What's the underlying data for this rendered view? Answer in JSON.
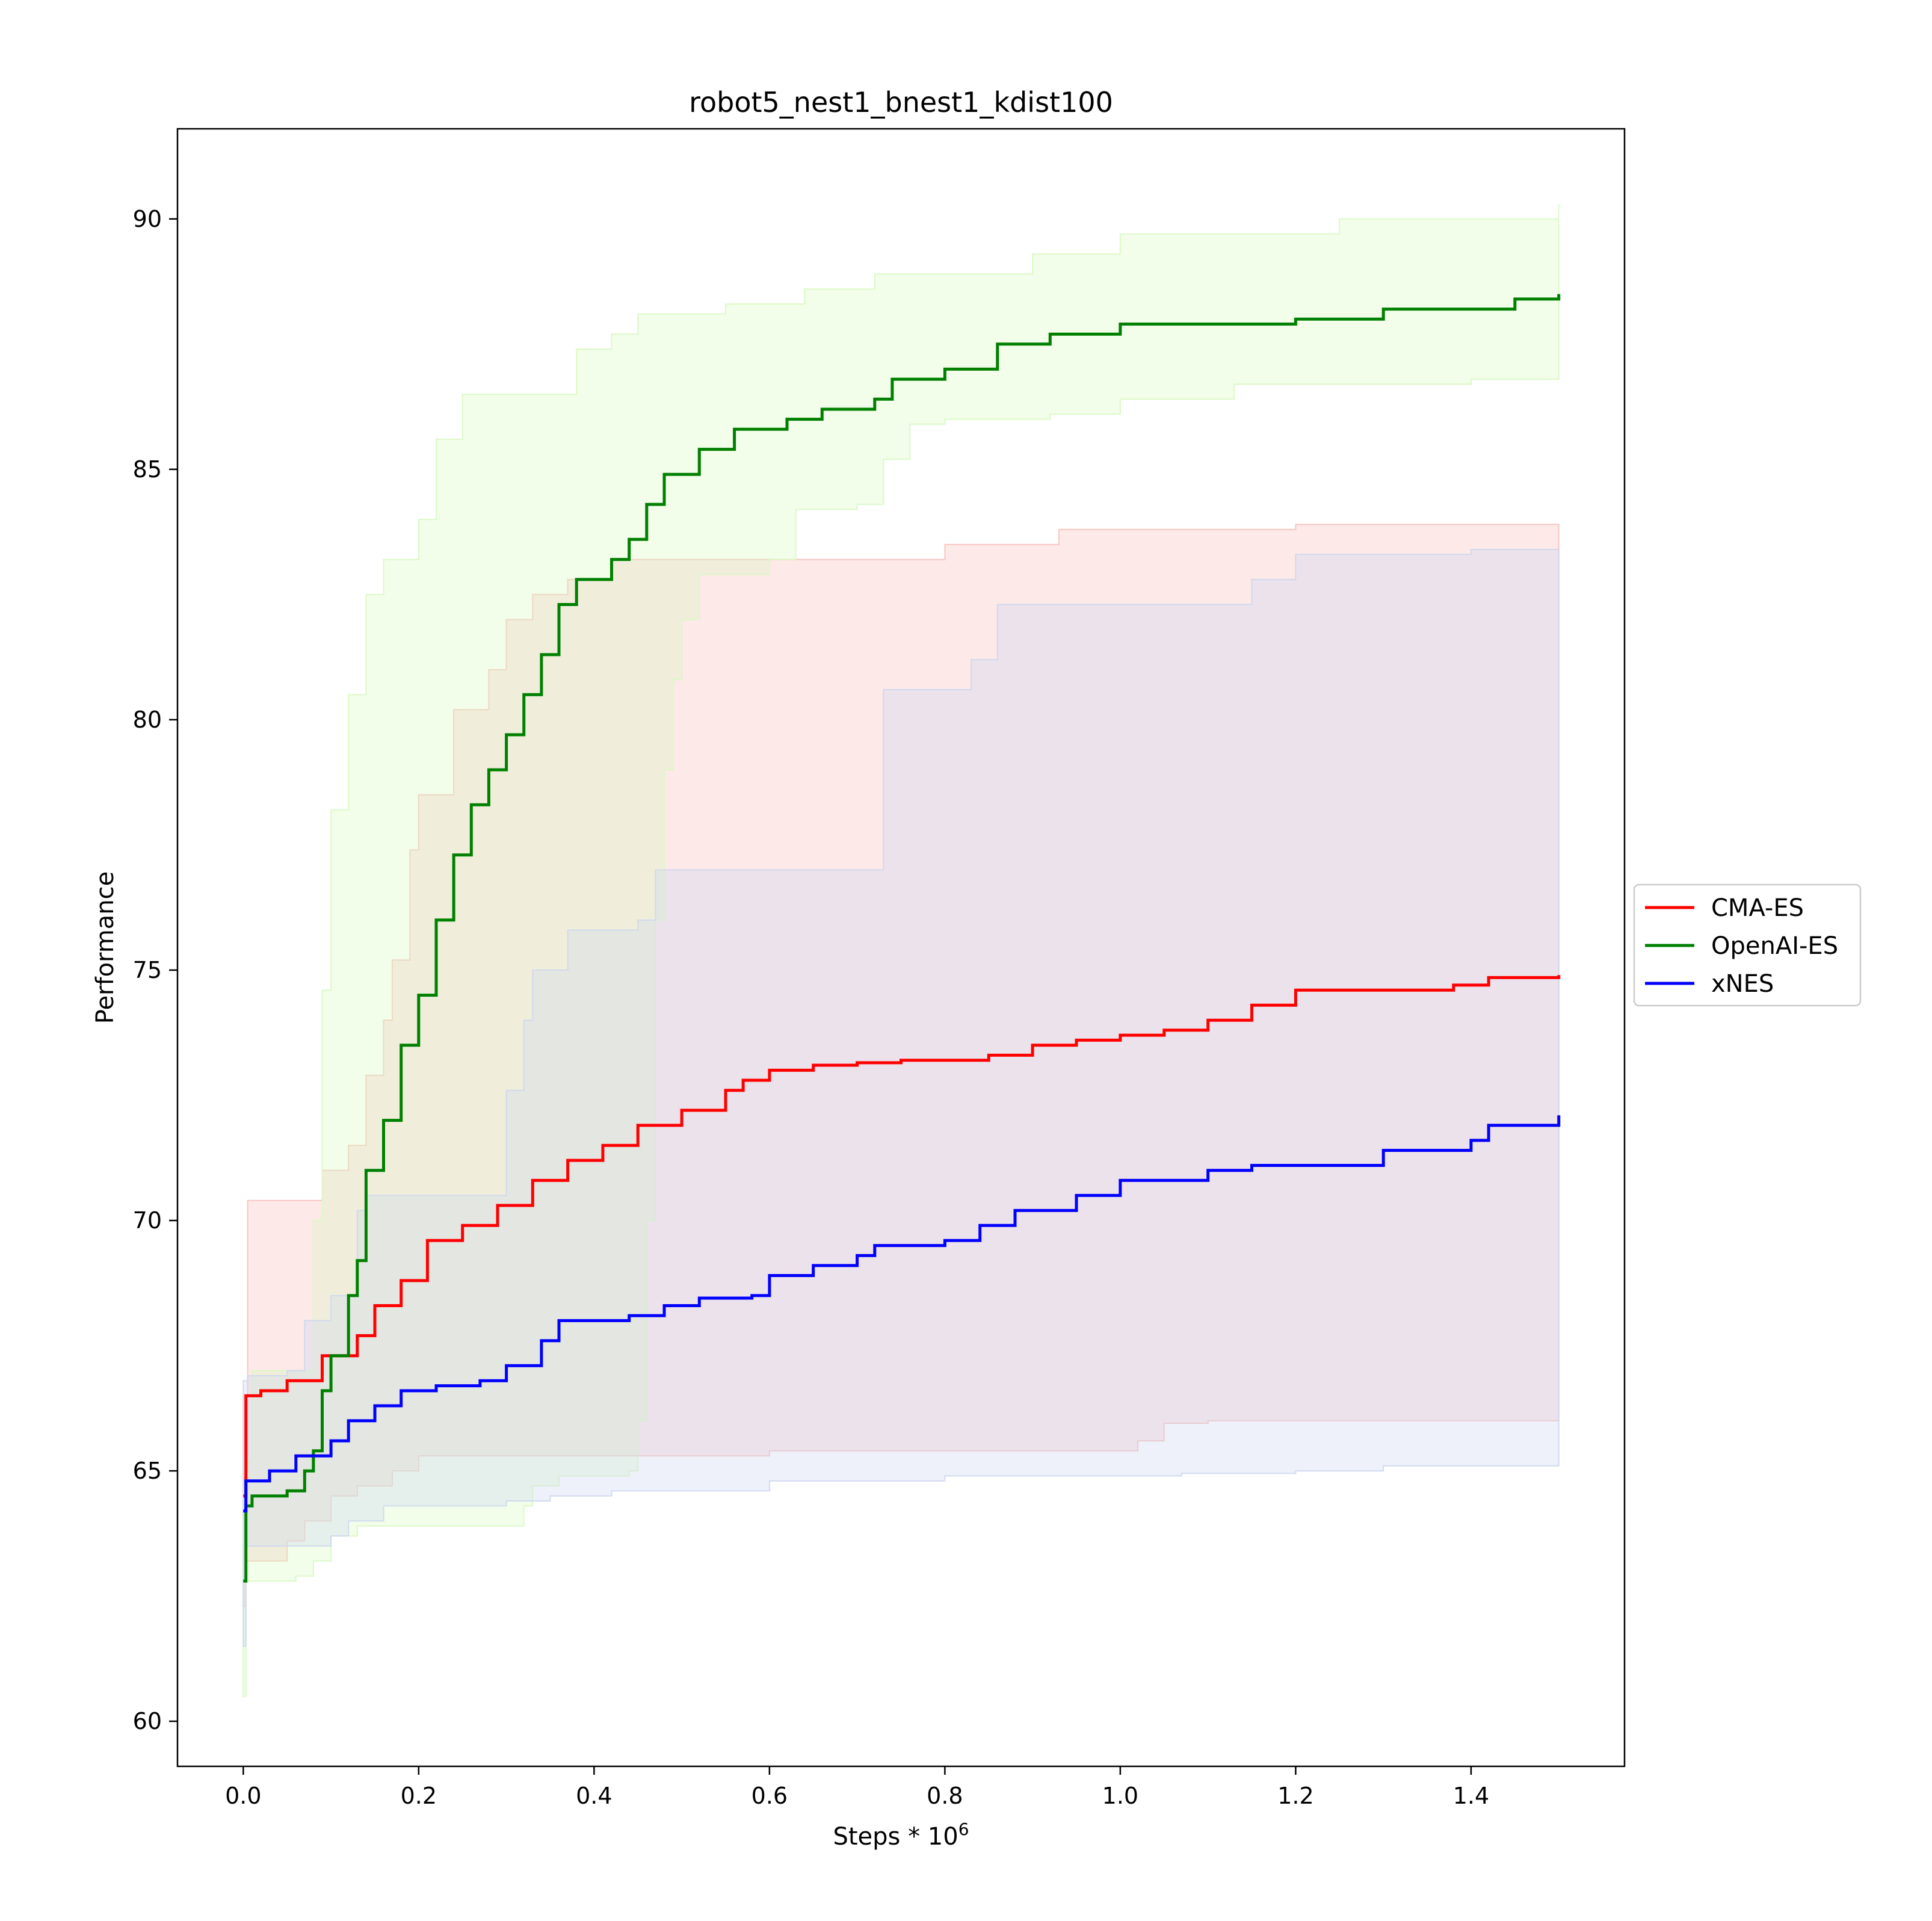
{
  "chart_data": {
    "type": "line",
    "title": "robot5_nest1_bnest1_kdist100",
    "xlabel": "Steps * 10",
    "xlabel_exponent": "6",
    "ylabel": "Performance",
    "xlim": [
      -0.075,
      1.575
    ],
    "ylim": [
      59.1,
      91.8
    ],
    "xticks": [
      0.0,
      0.2,
      0.4,
      0.6,
      0.8,
      1.0,
      1.2,
      1.4
    ],
    "xtick_labels": [
      "0.0",
      "0.2",
      "0.4",
      "0.6",
      "0.8",
      "1.0",
      "1.2",
      "1.4"
    ],
    "yticks": [
      60,
      65,
      70,
      75,
      80,
      85,
      90
    ],
    "ytick_labels": [
      "60",
      "65",
      "70",
      "75",
      "80",
      "85",
      "90"
    ],
    "grid": false,
    "legend_position": "right",
    "series": [
      {
        "name": "CMA-ES",
        "color": "#ff0000",
        "band_color": "#f6c1bd",
        "mean": [
          [
            0,
            64.5
          ],
          [
            0.003,
            66.5
          ],
          [
            0.02,
            66.6
          ],
          [
            0.05,
            66.8
          ],
          [
            0.09,
            67.3
          ],
          [
            0.13,
            67.7
          ],
          [
            0.15,
            68.3
          ],
          [
            0.18,
            68.8
          ],
          [
            0.21,
            69.6
          ],
          [
            0.25,
            69.9
          ],
          [
            0.29,
            70.3
          ],
          [
            0.33,
            70.8
          ],
          [
            0.37,
            71.2
          ],
          [
            0.41,
            71.5
          ],
          [
            0.45,
            71.9
          ],
          [
            0.5,
            72.2
          ],
          [
            0.55,
            72.6
          ],
          [
            0.57,
            72.8
          ],
          [
            0.6,
            73.0
          ],
          [
            0.65,
            73.1
          ],
          [
            0.7,
            73.15
          ],
          [
            0.75,
            73.2
          ],
          [
            0.85,
            73.3
          ],
          [
            0.9,
            73.5
          ],
          [
            0.95,
            73.6
          ],
          [
            1.0,
            73.7
          ],
          [
            1.05,
            73.8
          ],
          [
            1.1,
            74.0
          ],
          [
            1.15,
            74.3
          ],
          [
            1.2,
            74.6
          ],
          [
            1.3,
            74.6
          ],
          [
            1.38,
            74.7
          ],
          [
            1.42,
            74.85
          ],
          [
            1.5,
            74.9
          ]
        ],
        "upper": [
          [
            0,
            66.5
          ],
          [
            0.005,
            70.4
          ],
          [
            0.08,
            70.4
          ],
          [
            0.09,
            71.0
          ],
          [
            0.12,
            71.5
          ],
          [
            0.14,
            72.9
          ],
          [
            0.16,
            74.0
          ],
          [
            0.17,
            75.2
          ],
          [
            0.19,
            77.4
          ],
          [
            0.2,
            78.5
          ],
          [
            0.24,
            80.2
          ],
          [
            0.28,
            81.0
          ],
          [
            0.3,
            82.0
          ],
          [
            0.33,
            82.5
          ],
          [
            0.37,
            82.8
          ],
          [
            0.42,
            83.2
          ],
          [
            0.58,
            83.2
          ],
          [
            0.8,
            83.5
          ],
          [
            0.93,
            83.8
          ],
          [
            1.1,
            83.8
          ],
          [
            1.2,
            83.9
          ],
          [
            1.5,
            83.9
          ]
        ],
        "lower": [
          [
            0,
            62.3
          ],
          [
            0.003,
            63.2
          ],
          [
            0.05,
            63.6
          ],
          [
            0.07,
            64.0
          ],
          [
            0.1,
            64.5
          ],
          [
            0.13,
            64.7
          ],
          [
            0.17,
            65.0
          ],
          [
            0.2,
            65.3
          ],
          [
            0.45,
            65.3
          ],
          [
            0.6,
            65.4
          ],
          [
            1.0,
            65.4
          ],
          [
            1.02,
            65.6
          ],
          [
            1.05,
            65.95
          ],
          [
            1.1,
            66.0
          ],
          [
            1.5,
            66.1
          ]
        ]
      },
      {
        "name": "OpenAI-ES",
        "color": "#008000",
        "band_color": "#d9f8c2",
        "mean": [
          [
            0,
            62.8
          ],
          [
            0.003,
            64.3
          ],
          [
            0.01,
            64.5
          ],
          [
            0.05,
            64.6
          ],
          [
            0.07,
            65.0
          ],
          [
            0.08,
            65.4
          ],
          [
            0.09,
            66.6
          ],
          [
            0.1,
            67.3
          ],
          [
            0.12,
            68.5
          ],
          [
            0.13,
            69.2
          ],
          [
            0.14,
            71.0
          ],
          [
            0.16,
            72.0
          ],
          [
            0.18,
            73.5
          ],
          [
            0.2,
            74.5
          ],
          [
            0.22,
            76.0
          ],
          [
            0.24,
            77.3
          ],
          [
            0.26,
            78.3
          ],
          [
            0.28,
            79.0
          ],
          [
            0.3,
            79.7
          ],
          [
            0.32,
            80.5
          ],
          [
            0.34,
            81.3
          ],
          [
            0.36,
            82.3
          ],
          [
            0.38,
            82.8
          ],
          [
            0.42,
            83.2
          ],
          [
            0.44,
            83.6
          ],
          [
            0.46,
            84.3
          ],
          [
            0.48,
            84.9
          ],
          [
            0.52,
            85.4
          ],
          [
            0.56,
            85.8
          ],
          [
            0.62,
            86.0
          ],
          [
            0.66,
            86.2
          ],
          [
            0.72,
            86.4
          ],
          [
            0.74,
            86.8
          ],
          [
            0.8,
            87.0
          ],
          [
            0.86,
            87.5
          ],
          [
            0.92,
            87.7
          ],
          [
            1.0,
            87.9
          ],
          [
            1.1,
            87.9
          ],
          [
            1.2,
            88.0
          ],
          [
            1.3,
            88.2
          ],
          [
            1.45,
            88.4
          ],
          [
            1.5,
            88.5
          ]
        ],
        "upper": [
          [
            0,
            65.2
          ],
          [
            0.01,
            67.0
          ],
          [
            0.06,
            67.0
          ],
          [
            0.08,
            70.0
          ],
          [
            0.09,
            74.6
          ],
          [
            0.1,
            78.2
          ],
          [
            0.12,
            80.5
          ],
          [
            0.14,
            82.5
          ],
          [
            0.16,
            83.2
          ],
          [
            0.2,
            84.0
          ],
          [
            0.22,
            85.6
          ],
          [
            0.25,
            86.5
          ],
          [
            0.36,
            86.5
          ],
          [
            0.38,
            87.4
          ],
          [
            0.42,
            87.7
          ],
          [
            0.45,
            88.1
          ],
          [
            0.55,
            88.3
          ],
          [
            0.64,
            88.6
          ],
          [
            0.72,
            88.9
          ],
          [
            0.9,
            89.3
          ],
          [
            1.0,
            89.7
          ],
          [
            1.25,
            90.0
          ],
          [
            1.5,
            90.3
          ]
        ],
        "lower": [
          [
            0,
            60.5
          ],
          [
            0.003,
            62.8
          ],
          [
            0.06,
            62.9
          ],
          [
            0.08,
            63.2
          ],
          [
            0.1,
            63.7
          ],
          [
            0.13,
            63.9
          ],
          [
            0.3,
            63.9
          ],
          [
            0.32,
            64.3
          ],
          [
            0.33,
            64.7
          ],
          [
            0.36,
            64.9
          ],
          [
            0.44,
            65.0
          ],
          [
            0.45,
            66.0
          ],
          [
            0.46,
            70.0
          ],
          [
            0.47,
            76.0
          ],
          [
            0.48,
            79.0
          ],
          [
            0.49,
            80.8
          ],
          [
            0.5,
            82.0
          ],
          [
            0.52,
            82.9
          ],
          [
            0.6,
            83.2
          ],
          [
            0.63,
            84.2
          ],
          [
            0.7,
            84.3
          ],
          [
            0.73,
            85.2
          ],
          [
            0.76,
            85.9
          ],
          [
            0.8,
            86.0
          ],
          [
            0.92,
            86.1
          ],
          [
            1.0,
            86.4
          ],
          [
            1.13,
            86.7
          ],
          [
            1.4,
            86.8
          ],
          [
            1.5,
            87.0
          ]
        ]
      },
      {
        "name": "xNES",
        "color": "#0000ff",
        "band_color": "#cdd7f0",
        "mean": [
          [
            0,
            64.2
          ],
          [
            0.003,
            64.8
          ],
          [
            0.03,
            65.0
          ],
          [
            0.06,
            65.3
          ],
          [
            0.1,
            65.6
          ],
          [
            0.12,
            66.0
          ],
          [
            0.15,
            66.3
          ],
          [
            0.18,
            66.6
          ],
          [
            0.22,
            66.7
          ],
          [
            0.27,
            66.8
          ],
          [
            0.3,
            67.1
          ],
          [
            0.34,
            67.6
          ],
          [
            0.36,
            68.0
          ],
          [
            0.44,
            68.1
          ],
          [
            0.48,
            68.3
          ],
          [
            0.52,
            68.45
          ],
          [
            0.58,
            68.5
          ],
          [
            0.6,
            68.9
          ],
          [
            0.65,
            69.1
          ],
          [
            0.7,
            69.3
          ],
          [
            0.72,
            69.5
          ],
          [
            0.8,
            69.6
          ],
          [
            0.84,
            69.9
          ],
          [
            0.88,
            70.2
          ],
          [
            0.95,
            70.5
          ],
          [
            1.0,
            70.8
          ],
          [
            1.1,
            71.0
          ],
          [
            1.15,
            71.1
          ],
          [
            1.3,
            71.4
          ],
          [
            1.4,
            71.6
          ],
          [
            1.42,
            71.9
          ],
          [
            1.5,
            72.1
          ]
        ],
        "upper": [
          [
            0,
            66.8
          ],
          [
            0.005,
            66.9
          ],
          [
            0.05,
            67.0
          ],
          [
            0.07,
            68.0
          ],
          [
            0.1,
            68.5
          ],
          [
            0.13,
            70.2
          ],
          [
            0.14,
            70.5
          ],
          [
            0.28,
            70.5
          ],
          [
            0.3,
            72.6
          ],
          [
            0.32,
            74.0
          ],
          [
            0.33,
            75.0
          ],
          [
            0.37,
            75.8
          ],
          [
            0.45,
            76.0
          ],
          [
            0.47,
            77.0
          ],
          [
            0.72,
            77.0
          ],
          [
            0.73,
            80.6
          ],
          [
            0.83,
            81.2
          ],
          [
            0.86,
            82.3
          ],
          [
            1.1,
            82.3
          ],
          [
            1.15,
            82.8
          ],
          [
            1.2,
            83.3
          ],
          [
            1.4,
            83.4
          ],
          [
            1.5,
            83.4
          ]
        ],
        "lower": [
          [
            0,
            61.5
          ],
          [
            0.003,
            63.5
          ],
          [
            0.06,
            63.5
          ],
          [
            0.1,
            63.7
          ],
          [
            0.12,
            64.0
          ],
          [
            0.16,
            64.3
          ],
          [
            0.3,
            64.4
          ],
          [
            0.35,
            64.5
          ],
          [
            0.42,
            64.6
          ],
          [
            0.6,
            64.8
          ],
          [
            0.8,
            64.9
          ],
          [
            1.07,
            64.95
          ],
          [
            1.2,
            65.0
          ],
          [
            1.3,
            65.1
          ],
          [
            1.5,
            65.15
          ]
        ]
      }
    ]
  }
}
